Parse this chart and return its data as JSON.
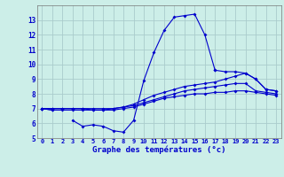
{
  "xlabel": "Graphe des températures (°c)",
  "background_color": "#cceee8",
  "grid_color": "#aacccc",
  "line_color": "#0000cc",
  "hours": [
    0,
    1,
    2,
    3,
    4,
    5,
    6,
    7,
    8,
    9,
    10,
    11,
    12,
    13,
    14,
    15,
    16,
    17,
    18,
    19,
    20,
    21,
    22,
    23
  ],
  "curve_peak": [
    7.0,
    6.9,
    null,
    6.2,
    5.8,
    5.9,
    5.8,
    5.5,
    5.4,
    6.2,
    8.9,
    10.8,
    12.3,
    13.2,
    13.3,
    13.4,
    12.0,
    9.6,
    null,
    null,
    null,
    null,
    null,
    null
  ],
  "curve_peak_end": [
    null,
    null,
    null,
    null,
    null,
    null,
    null,
    null,
    null,
    null,
    null,
    null,
    null,
    null,
    null,
    null,
    null,
    9.6,
    9.5,
    9.5,
    9.4,
    9.0,
    8.3,
    8.2
  ],
  "curve_upper": [
    7.0,
    7.0,
    7.0,
    7.0,
    7.0,
    7.0,
    7.0,
    7.0,
    7.1,
    7.3,
    7.6,
    7.9,
    8.1,
    8.3,
    8.5,
    8.6,
    8.7,
    8.8,
    9.0,
    9.2,
    9.4,
    9.0,
    8.3,
    8.2
  ],
  "curve_lower": [
    7.0,
    7.0,
    7.0,
    7.0,
    7.0,
    6.9,
    6.9,
    7.0,
    7.1,
    7.2,
    7.4,
    7.6,
    7.8,
    8.0,
    8.2,
    8.3,
    8.4,
    8.5,
    8.6,
    8.7,
    8.7,
    8.2,
    8.1,
    8.0
  ],
  "curve_bottom": [
    7.0,
    6.9,
    6.9,
    6.9,
    6.9,
    6.9,
    6.9,
    6.9,
    7.0,
    7.1,
    7.3,
    7.5,
    7.7,
    7.8,
    7.9,
    8.0,
    8.0,
    8.1,
    8.1,
    8.2,
    8.2,
    8.1,
    8.0,
    7.9
  ],
  "ylim": [
    5,
    14
  ],
  "yticks": [
    5,
    6,
    7,
    8,
    9,
    10,
    11,
    12,
    13
  ],
  "xlim_min": -0.5,
  "xlim_max": 23.5
}
